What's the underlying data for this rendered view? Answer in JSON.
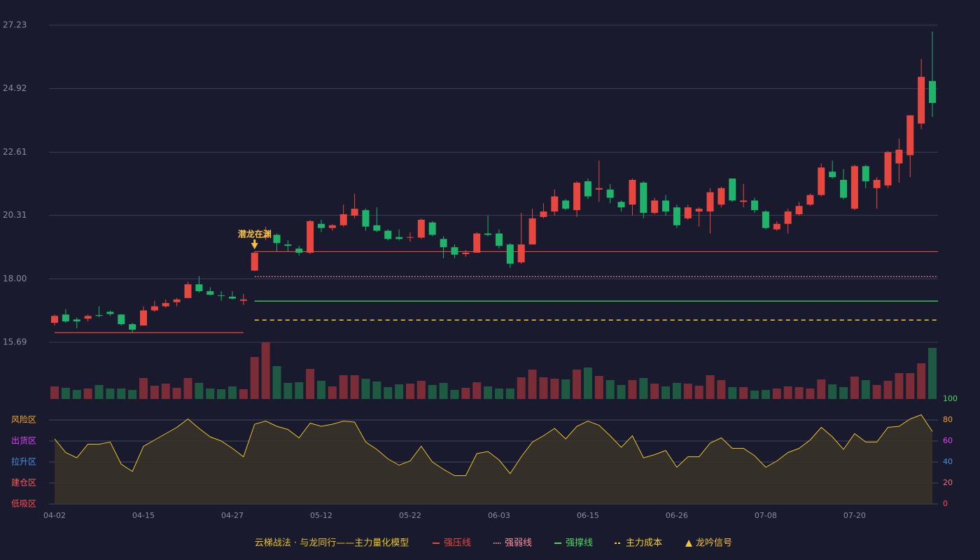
{
  "chart_data": {
    "type": "candlestick",
    "categories": [
      "04-02",
      null,
      null,
      null,
      null,
      null,
      null,
      null,
      "04-15",
      null,
      null,
      null,
      null,
      null,
      null,
      null,
      "04-27",
      null,
      null,
      null,
      null,
      null,
      null,
      null,
      "05-12",
      null,
      null,
      null,
      null,
      null,
      null,
      null,
      "05-22",
      null,
      null,
      null,
      null,
      null,
      null,
      null,
      "06-03",
      null,
      null,
      null,
      null,
      null,
      null,
      null,
      "06-15",
      null,
      null,
      null,
      null,
      null,
      null,
      null,
      "06-26",
      null,
      null,
      null,
      null,
      null,
      null,
      null,
      "07-08",
      null,
      null,
      null,
      null,
      null,
      null,
      null,
      "07-20",
      null,
      null,
      null,
      null,
      null,
      null,
      null
    ],
    "open": [
      16.4,
      16.7,
      16.52,
      16.55,
      16.68,
      16.8,
      16.7,
      16.35,
      16.3,
      16.85,
      17.0,
      17.15,
      17.3,
      17.8,
      17.55,
      17.4,
      17.35,
      17.2,
      18.3,
      19.5,
      19.6,
      19.25,
      19.1,
      18.95,
      20.0,
      19.85,
      19.95,
      20.3,
      20.5,
      19.95,
      19.75,
      19.52,
      19.5,
      19.5,
      20.05,
      19.45,
      19.15,
      18.9,
      18.95,
      19.65,
      19.65,
      19.25,
      18.6,
      19.25,
      20.25,
      20.45,
      20.85,
      20.5,
      21.55,
      21.25,
      21.25,
      20.8,
      20.7,
      21.5,
      20.4,
      20.85,
      20.6,
      20.2,
      20.45,
      20.45,
      20.7,
      21.65,
      20.8,
      20.85,
      20.45,
      19.8,
      20.0,
      20.35,
      20.7,
      21.05,
      21.9,
      21.6,
      20.55,
      22.1,
      21.3,
      21.4,
      22.2,
      22.5,
      23.65,
      25.2
    ],
    "high": [
      16.7,
      16.9,
      16.6,
      16.7,
      17.0,
      16.85,
      16.72,
      16.4,
      17.0,
      17.2,
      17.25,
      17.3,
      17.9,
      18.1,
      17.7,
      17.55,
      17.55,
      17.45,
      19.0,
      19.9,
      19.65,
      19.4,
      19.2,
      20.15,
      20.15,
      20.0,
      20.7,
      21.1,
      20.55,
      20.6,
      19.8,
      19.8,
      19.7,
      20.2,
      20.1,
      19.55,
      19.25,
      19.05,
      19.7,
      20.3,
      19.8,
      19.3,
      20.4,
      20.55,
      20.75,
      21.25,
      20.9,
      21.55,
      21.65,
      22.3,
      21.45,
      20.85,
      21.65,
      21.55,
      20.95,
      21.05,
      20.7,
      20.7,
      20.6,
      21.3,
      21.35,
      21.65,
      21.45,
      20.95,
      20.5,
      20.1,
      20.55,
      20.8,
      21.1,
      22.2,
      22.3,
      22.0,
      22.15,
      22.15,
      21.7,
      22.65,
      23.1,
      23.95,
      26.0,
      27.0
    ],
    "low": [
      16.3,
      16.4,
      16.2,
      16.45,
      16.6,
      16.65,
      16.3,
      16.05,
      16.3,
      16.8,
      16.95,
      17.0,
      17.3,
      17.5,
      17.4,
      17.2,
      17.25,
      17.05,
      18.28,
      19.4,
      19.0,
      19.0,
      18.85,
      18.9,
      19.7,
      19.75,
      19.9,
      20.2,
      19.75,
      19.7,
      19.4,
      19.4,
      19.35,
      19.45,
      19.55,
      18.75,
      18.75,
      18.8,
      18.95,
      19.55,
      19.1,
      18.4,
      18.55,
      19.25,
      20.2,
      20.3,
      20.5,
      20.25,
      20.9,
      20.8,
      20.75,
      20.45,
      20.3,
      20.2,
      20.35,
      20.3,
      19.85,
      20.15,
      19.9,
      19.65,
      20.6,
      20.8,
      20.6,
      20.4,
      19.8,
      19.75,
      19.65,
      20.3,
      20.65,
      21.0,
      21.65,
      20.9,
      20.5,
      21.3,
      20.55,
      21.3,
      21.5,
      21.7,
      23.45,
      23.9
    ],
    "close": [
      16.65,
      16.45,
      16.45,
      16.65,
      16.65,
      16.72,
      16.35,
      16.15,
      16.85,
      17.0,
      17.12,
      17.25,
      17.8,
      17.55,
      17.42,
      17.38,
      17.28,
      17.25,
      18.95,
      19.55,
      19.3,
      19.2,
      18.95,
      20.1,
      19.85,
      19.95,
      20.35,
      20.55,
      19.9,
      19.75,
      19.45,
      19.45,
      19.52,
      20.15,
      19.6,
      19.15,
      18.88,
      18.95,
      19.65,
      19.6,
      19.2,
      18.55,
      19.25,
      20.2,
      20.45,
      21.0,
      20.55,
      21.5,
      21.0,
      21.3,
      20.95,
      20.6,
      21.6,
      20.4,
      20.85,
      20.45,
      19.95,
      20.6,
      20.55,
      21.15,
      21.3,
      20.85,
      20.85,
      20.5,
      19.85,
      20.0,
      20.45,
      20.65,
      21.05,
      22.05,
      21.7,
      20.95,
      22.1,
      21.55,
      21.6,
      22.61,
      22.7,
      23.95,
      25.35,
      24.4
    ],
    "up_color": "#e8473f",
    "down_color": "#20b36a",
    "ylim": [
      15.69,
      27.23
    ],
    "yticks": [
      {
        "value": 15.69,
        "label": "15.69"
      },
      {
        "value": 18,
        "label": "18.00"
      },
      {
        "value": 20.31,
        "label": "20.31"
      },
      {
        "value": 22.61,
        "label": "22.61"
      },
      {
        "value": 24.92,
        "label": "24.92"
      },
      {
        "value": 27.23,
        "label": "27.23"
      }
    ],
    "grid": true,
    "lines": [
      {
        "name": "强压线",
        "color": "#e8473f",
        "style": "solid",
        "segments": [
          {
            "from": 0,
            "to": 17,
            "value": 16.04
          },
          {
            "from": 18,
            "to": 79,
            "value": 18.99
          }
        ]
      },
      {
        "name": "强弱线",
        "color": "#ff8fa0",
        "style": "dotted",
        "segments": [
          {
            "from": 18,
            "to": 79,
            "value": 18.08
          }
        ]
      },
      {
        "name": "强撑线",
        "color": "#4cd964",
        "style": "solid",
        "segments": [
          {
            "from": 18,
            "to": 79,
            "value": 17.19
          }
        ]
      },
      {
        "name": "主力成本",
        "color": "#f5d020",
        "style": "dashed",
        "segments": [
          {
            "from": 18,
            "to": 79,
            "value": 16.5
          }
        ]
      }
    ],
    "signal": {
      "name": "龙吟信号",
      "text": "潜龙在渊",
      "index": 18,
      "color": "#f5c242"
    },
    "volume": {
      "values": [
        18,
        16,
        13,
        15,
        20,
        15,
        15,
        13,
        30,
        19,
        22,
        16,
        30,
        23,
        15,
        14,
        18,
        14,
        60,
        81,
        47,
        23,
        24,
        43,
        26,
        18,
        34,
        34,
        29,
        25,
        17,
        21,
        22,
        26,
        20,
        23,
        13,
        16,
        24,
        18,
        15,
        15,
        31,
        42,
        31,
        29,
        28,
        42,
        45,
        33,
        27,
        20,
        27,
        30,
        22,
        18,
        23,
        22,
        19,
        34,
        27,
        17,
        17,
        12,
        13,
        15,
        18,
        17,
        15,
        28,
        21,
        17,
        32,
        27,
        20,
        26,
        37,
        37,
        51,
        73
      ],
      "up_color": "#7a2d36",
      "down_color": "#1d5a41"
    },
    "indicator": {
      "values": [
        62,
        49,
        44,
        57,
        57,
        59,
        38,
        31,
        55,
        61,
        67,
        73,
        81,
        72,
        64,
        60,
        53,
        45,
        76,
        79,
        74,
        71,
        63,
        77,
        74,
        76,
        79,
        78,
        59,
        52,
        43,
        37,
        41,
        55,
        40,
        33,
        27,
        27,
        48,
        50,
        42,
        29,
        45,
        59,
        65,
        72,
        62,
        74,
        79,
        75,
        65,
        54,
        65,
        44,
        47,
        51,
        35,
        45,
        45,
        58,
        63,
        53,
        53,
        46,
        35,
        41,
        49,
        53,
        61,
        73,
        64,
        52,
        67,
        59,
        59,
        73,
        74,
        81,
        85,
        69
      ],
      "color": "#e6c229",
      "ylim": [
        0,
        100
      ],
      "yticks": [
        {
          "value": 80,
          "label": "风险区"
        },
        {
          "value": 60,
          "label": "出货区"
        },
        {
          "value": 40,
          "label": "拉升区"
        },
        {
          "value": 20,
          "label": "建仓区"
        },
        {
          "value": 0,
          "label": "低吸区"
        }
      ],
      "ytick_colors": [
        "#f5a623",
        "#e040fb",
        "#4a90e2",
        "#ff5a5a",
        "#ff4d4d"
      ],
      "y2ticks": [
        0,
        20,
        40,
        60,
        80,
        100
      ],
      "y2tick_colors": [
        "#ff4d4d",
        "#ff6b6b",
        "#4a90e2",
        "#e040fb",
        "#f5a623",
        "#4cd964"
      ]
    },
    "legend": {
      "title": "云梯战法 · 与龙同行——主力量化模型",
      "title_color": "#e6c229"
    }
  }
}
